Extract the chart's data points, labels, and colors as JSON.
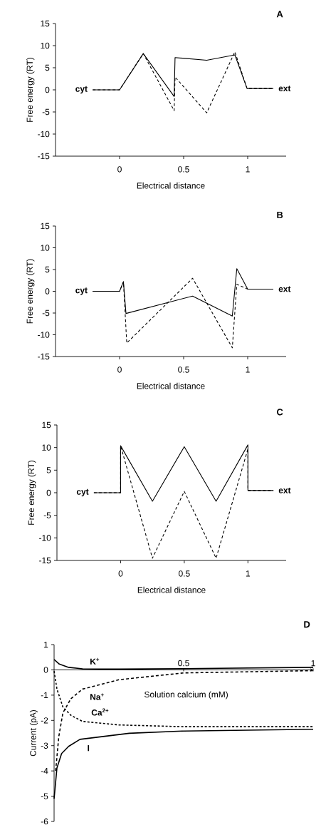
{
  "chart_data": [
    {
      "type": "line",
      "title": "A",
      "xlabel": "Electrical distance",
      "ylabel": "Free energy (RT)",
      "xlim": [
        -0.5,
        1.3
      ],
      "ylim": [
        -15,
        15
      ],
      "xticks": [
        0,
        0.5,
        1
      ],
      "yticks": [
        -15,
        -10,
        -5,
        0,
        5,
        10,
        15
      ],
      "series": [
        {
          "color": "#000000",
          "line_style": "solid",
          "x": [
            -0.21,
            0,
            0.185,
            0.426,
            0.433,
            0.68,
            0.9,
            0.995,
            1.2
          ],
          "values": [
            0,
            0,
            8.2,
            -1.5,
            7.3,
            6.7,
            7.9,
            0.3,
            0.3
          ]
        },
        {
          "color": "#000000",
          "line_style": "dashed",
          "x": [
            -0.21,
            0,
            0.185,
            0.426,
            0.433,
            0.68,
            0.9,
            0.995,
            1.2
          ],
          "values": [
            0,
            0,
            8.2,
            -4.7,
            2.9,
            -5.2,
            8.6,
            0.3,
            0.3
          ]
        }
      ],
      "annotations": [
        "cyt",
        "ext"
      ]
    },
    {
      "type": "line",
      "title": "B",
      "xlabel": "Electrical distance",
      "ylabel": "Free energy (RT)",
      "xlim": [
        -0.5,
        1.3
      ],
      "ylim": [
        -15,
        15
      ],
      "xticks": [
        0,
        0.5,
        1
      ],
      "yticks": [
        -15,
        -10,
        -5,
        0,
        5,
        10,
        15
      ],
      "series": [
        {
          "color": "#000000",
          "line_style": "solid",
          "x": [
            -0.21,
            0,
            0.03,
            0.05,
            0.57,
            0.88,
            0.915,
            1,
            1.2
          ],
          "values": [
            0,
            0,
            2.2,
            -5.1,
            -1.1,
            -5.7,
            5.2,
            0.5,
            0.5
          ]
        },
        {
          "color": "#000000",
          "line_style": "dashed",
          "x": [
            -0.21,
            0,
            0.03,
            0.056,
            0.57,
            0.88,
            0.915,
            1,
            1.2
          ],
          "values": [
            0,
            0,
            2.2,
            -11.9,
            3,
            -13,
            1.6,
            0.5,
            0.5
          ]
        }
      ],
      "annotations": [
        "cyt",
        "ext"
      ]
    },
    {
      "type": "line",
      "title": "C",
      "xlabel": "Electrical distance",
      "ylabel": "Free energy (RT)",
      "xlim": [
        -0.5,
        1.3
      ],
      "ylim": [
        -15,
        15
      ],
      "xticks": [
        0,
        0.5,
        1
      ],
      "yticks": [
        -15,
        -10,
        -5,
        0,
        5,
        10,
        15
      ],
      "series": [
        {
          "color": "#000000",
          "line_style": "solid",
          "x": [
            -0.21,
            0,
            0,
            0.25,
            0.5,
            0.75,
            1,
            1,
            1.2
          ],
          "values": [
            0,
            0,
            10.4,
            -1.9,
            10.2,
            -1.9,
            10.6,
            0.5,
            0.5
          ]
        },
        {
          "color": "#000000",
          "line_style": "dashed",
          "x": [
            -0.21,
            0,
            0,
            0.25,
            0.5,
            0.75,
            1,
            1,
            1.2
          ],
          "values": [
            0,
            0,
            10.4,
            -14.5,
            0.3,
            -14.5,
            9.7,
            0.5,
            0.5
          ]
        }
      ],
      "annotations": [
        "cyt",
        "ext"
      ]
    },
    {
      "type": "line",
      "title": "D",
      "xlabel": "Solution calcium (mM)",
      "ylabel": "Current (pA)",
      "xlim": [
        0,
        1
      ],
      "ylim": [
        -6,
        1
      ],
      "xticks": [
        0.5,
        1
      ],
      "yticks": [
        -6,
        -5,
        -4,
        -3,
        -2,
        -1,
        0,
        1
      ],
      "series": [
        {
          "name": "K$^{+}$",
          "color": "#000000",
          "line_style": "solid",
          "x": [
            0,
            0.02,
            0.056,
            0.11,
            0.25,
            0.5,
            1
          ],
          "values": [
            0.41,
            0.23,
            0.1,
            0.04,
            0.03,
            0.05,
            0.1
          ]
        },
        {
          "name": "Na$^{+}$",
          "color": "#000000",
          "line_style": "dashed",
          "x": [
            0.006,
            0.018,
            0.034,
            0.065,
            0.11,
            0.25,
            0.5,
            1
          ],
          "values": [
            -4,
            -2.65,
            -1.7,
            -1.14,
            -0.76,
            -0.39,
            -0.12,
            -0.03
          ]
        },
        {
          "name": "Ca$^{2+}$",
          "color": "#000000",
          "line_style": "dashed",
          "x": [
            0,
            0.011,
            0.034,
            0.065,
            0.11,
            0.25,
            0.5,
            1
          ],
          "values": [
            -0.05,
            -0.76,
            -1.47,
            -1.8,
            -2.04,
            -2.18,
            -2.25,
            -2.25
          ]
        },
        {
          "name": "I",
          "color": "#000000",
          "line_style": "solid",
          "x": [
            0,
            0.011,
            0.029,
            0.056,
            0.1,
            0.29,
            0.5,
            1
          ],
          "values": [
            -5.1,
            -3.88,
            -3.31,
            -3.03,
            -2.75,
            -2.51,
            -2.42,
            -2.35
          ]
        }
      ]
    }
  ]
}
